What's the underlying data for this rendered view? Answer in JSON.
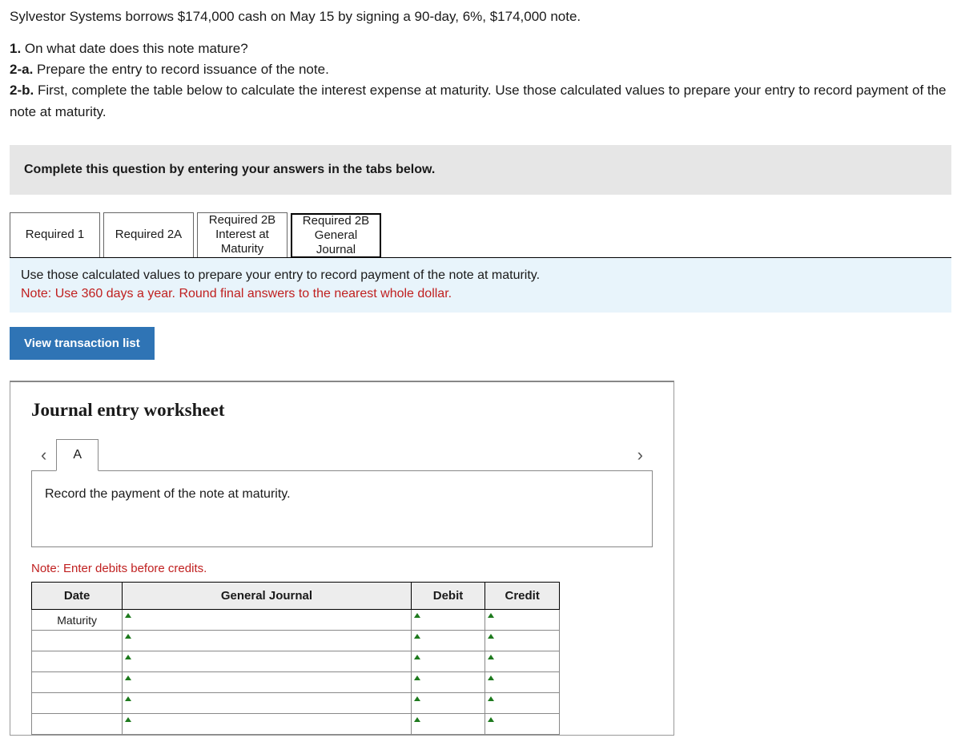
{
  "problem_text": "Sylvestor Systems borrows $174,000 cash on May 15 by signing a 90-day, 6%, $174,000 note.",
  "questions": {
    "q1": {
      "num": "1.",
      "text": " On what date does this note mature?"
    },
    "q2a": {
      "num": "2-a.",
      "text": " Prepare the entry to record issuance of the note."
    },
    "q2b": {
      "num": "2-b.",
      "text": " First, complete the table below to calculate the interest expense at maturity. Use those calculated values to prepare your entry to record payment of the note at maturity."
    }
  },
  "complete_banner": "Complete this question by entering your answers in the tabs below.",
  "tabs": {
    "r1": "Required 1",
    "r2a": "Required 2A",
    "r2b_int": "Required 2B\nInterest at\nMaturity",
    "r2b_gj": "Required 2B\nGeneral\nJournal"
  },
  "active_tab": "r2b_gj",
  "instruction": {
    "line1": "Use those calculated values to prepare your entry to record payment of the note at maturity.",
    "line2": "Note: Use 360 days a year. Round final answers to the nearest whole dollar."
  },
  "view_transaction_btn": "View transaction list",
  "worksheet": {
    "title": "Journal entry worksheet",
    "entry_tab": "A",
    "entry_instruction": "Record the payment of the note at maturity.",
    "debit_note": "Note: Enter debits before credits.",
    "headers": {
      "date": "Date",
      "gj": "General Journal",
      "debit": "Debit",
      "credit": "Credit"
    },
    "first_date": "Maturity",
    "row_count": 6,
    "colors": {
      "banner_bg": "#e6e6e6",
      "instruction_bg": "#e8f4fb",
      "note_color": "#c02020",
      "button_bg": "#2f74b5",
      "dropdown_marker": "#1e7a1e",
      "header_bg": "#ededed"
    }
  }
}
